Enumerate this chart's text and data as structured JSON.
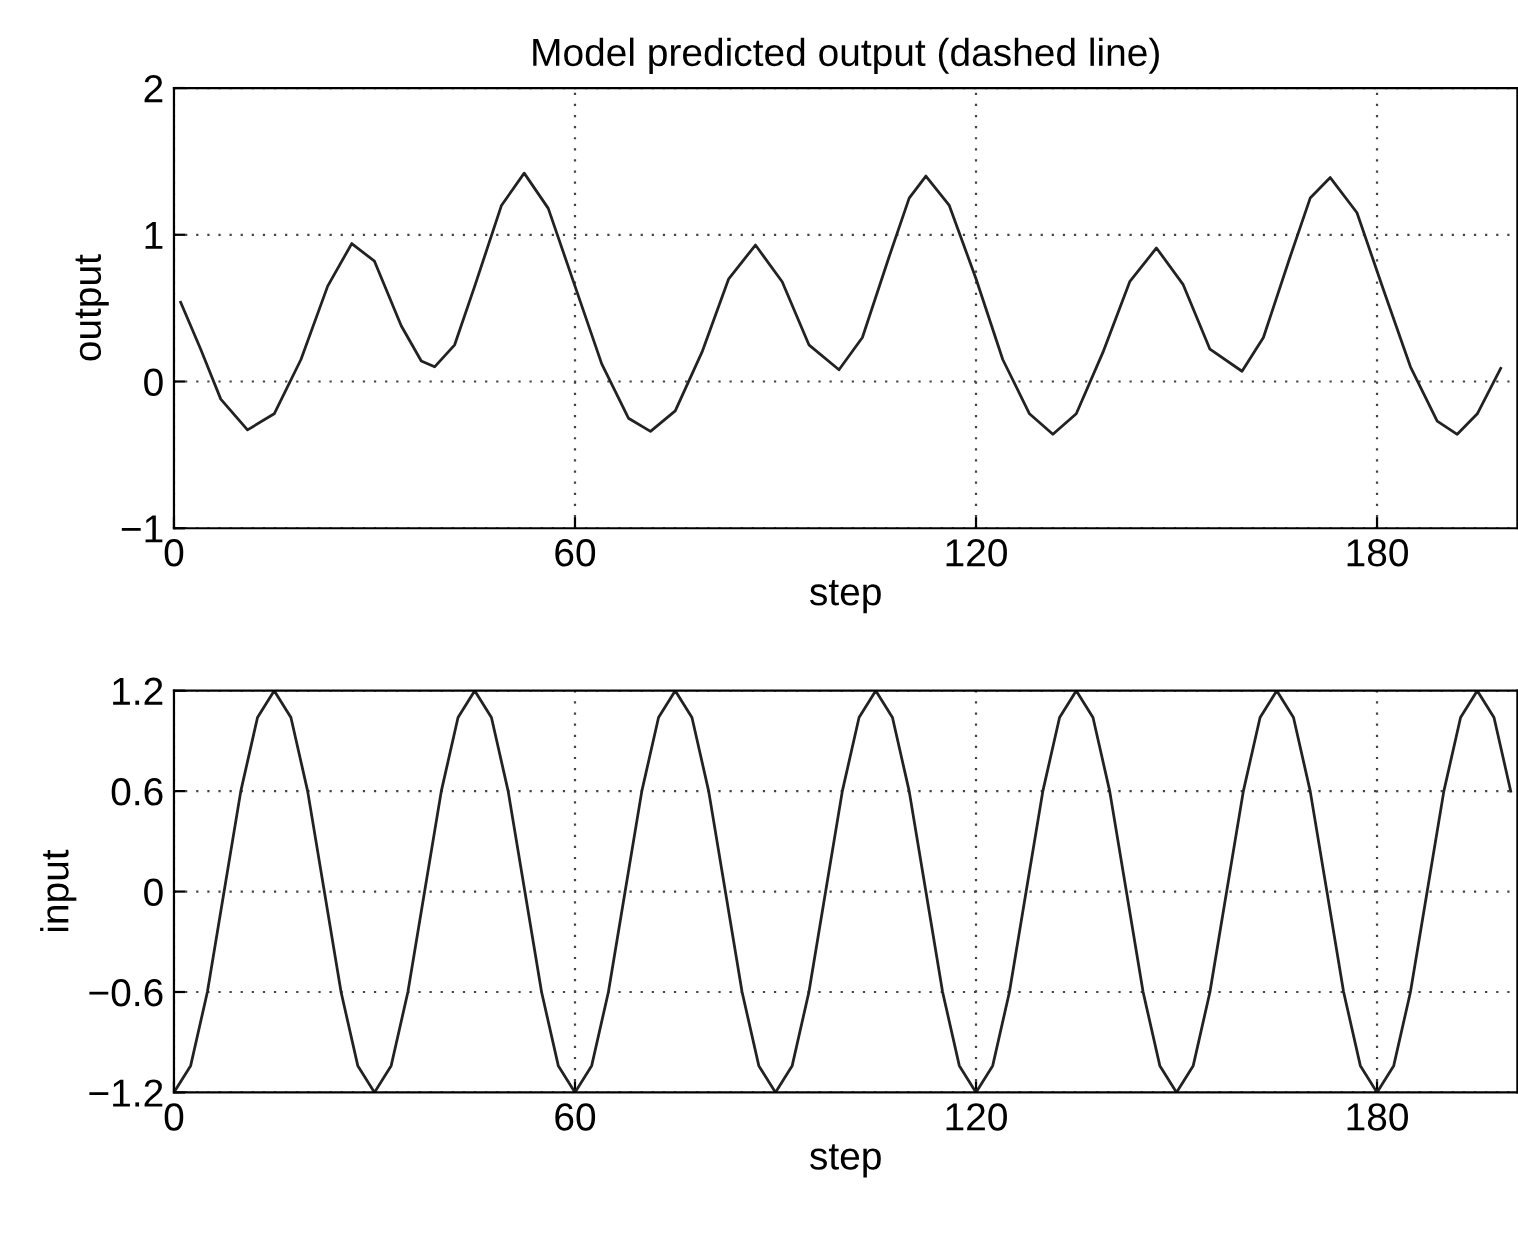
{
  "chart_data": [
    {
      "type": "line",
      "title": "Model predicted output (dashed line)",
      "xlabel": "step",
      "ylabel": "output",
      "xlim": [
        0,
        201
      ],
      "ylim": [
        -1,
        2
      ],
      "xticks": [
        0,
        60,
        120,
        180
      ],
      "yticks": [
        -1,
        0,
        1,
        2
      ],
      "grid": true,
      "line_style": "solid",
      "series": [
        {
          "color": "#222222",
          "x": [
            1,
            4,
            7,
            11,
            15,
            19,
            23,
            26.6,
            30,
            34,
            37,
            39,
            42,
            45,
            49,
            52.4,
            56,
            60,
            64,
            68,
            71.3,
            75,
            79,
            83,
            87,
            91,
            95,
            99.5,
            103,
            107,
            110,
            112.5,
            116,
            120,
            124,
            128,
            131.5,
            135,
            139,
            143,
            147,
            151,
            155,
            159.8,
            163,
            167,
            170,
            173,
            177,
            181,
            185,
            189,
            192,
            195,
            198.5
          ],
          "values": [
            0.54,
            0.22,
            -0.12,
            -0.33,
            -0.22,
            0.15,
            0.65,
            0.94,
            0.82,
            0.38,
            0.14,
            0.1,
            0.25,
            0.65,
            1.2,
            1.42,
            1.18,
            0.65,
            0.12,
            -0.25,
            -0.34,
            -0.2,
            0.2,
            0.7,
            0.93,
            0.68,
            0.25,
            0.08,
            0.3,
            0.85,
            1.25,
            1.4,
            1.2,
            0.7,
            0.15,
            -0.22,
            -0.36,
            -0.22,
            0.2,
            0.68,
            0.91,
            0.66,
            0.22,
            0.07,
            0.3,
            0.85,
            1.25,
            1.39,
            1.15,
            0.62,
            0.1,
            -0.27,
            -0.36,
            -0.22,
            0.09
          ]
        }
      ]
    },
    {
      "type": "line",
      "xlabel": "step",
      "ylabel": "input",
      "xlim": [
        0,
        201
      ],
      "ylim": [
        -1.2,
        1.2
      ],
      "xticks": [
        0,
        60,
        120,
        180
      ],
      "yticks": [
        -1.2,
        -0.6,
        0,
        0.6,
        1.2
      ],
      "grid": true,
      "line_style": "solid",
      "series": [
        {
          "color": "#222222",
          "x": [
            0,
            2.5,
            5,
            7.5,
            10,
            12.5,
            15,
            17.5,
            20,
            22.5,
            25,
            27.5,
            30,
            32.5,
            35,
            37.5,
            40,
            42.5,
            45,
            47.5,
            50,
            52.5,
            55,
            57.5,
            60,
            62.5,
            65,
            67.5,
            70,
            72.5,
            75,
            77.5,
            80,
            82.5,
            85,
            87.5,
            90,
            92.5,
            95,
            97.5,
            100,
            102.5,
            105,
            107.5,
            110,
            112.5,
            115,
            117.5,
            120,
            122.5,
            125,
            127.5,
            130,
            132.5,
            135,
            137.5,
            140,
            142.5,
            145,
            147.5,
            150,
            152.5,
            155,
            157.5,
            160,
            162.5,
            165,
            167.5,
            170,
            172.5,
            175,
            177.5,
            180,
            182.5,
            185,
            187.5,
            190,
            192.5,
            195,
            197.5,
            200
          ],
          "values": [
            -1.2,
            -1.04,
            -0.6,
            0,
            0.6,
            1.04,
            1.2,
            1.04,
            0.6,
            0,
            -0.6,
            -1.04,
            -1.2,
            -1.04,
            -0.6,
            0,
            0.6,
            1.04,
            1.2,
            1.04,
            0.6,
            0,
            -0.6,
            -1.04,
            -1.2,
            -1.04,
            -0.6,
            0,
            0.6,
            1.04,
            1.2,
            1.04,
            0.6,
            0,
            -0.6,
            -1.04,
            -1.2,
            -1.04,
            -0.6,
            0,
            0.6,
            1.04,
            1.2,
            1.04,
            0.6,
            0,
            -0.6,
            -1.04,
            -1.2,
            -1.04,
            -0.6,
            0,
            0.6,
            1.04,
            1.2,
            1.04,
            0.6,
            0,
            -0.6,
            -1.04,
            -1.2,
            -1.04,
            -0.6,
            0,
            0.6,
            1.04,
            1.2,
            1.04,
            0.6,
            0,
            -0.6,
            -1.04,
            -1.2,
            -1.04,
            -0.6,
            0,
            0.6,
            1.04,
            1.2,
            1.04,
            0.6
          ]
        }
      ]
    }
  ]
}
